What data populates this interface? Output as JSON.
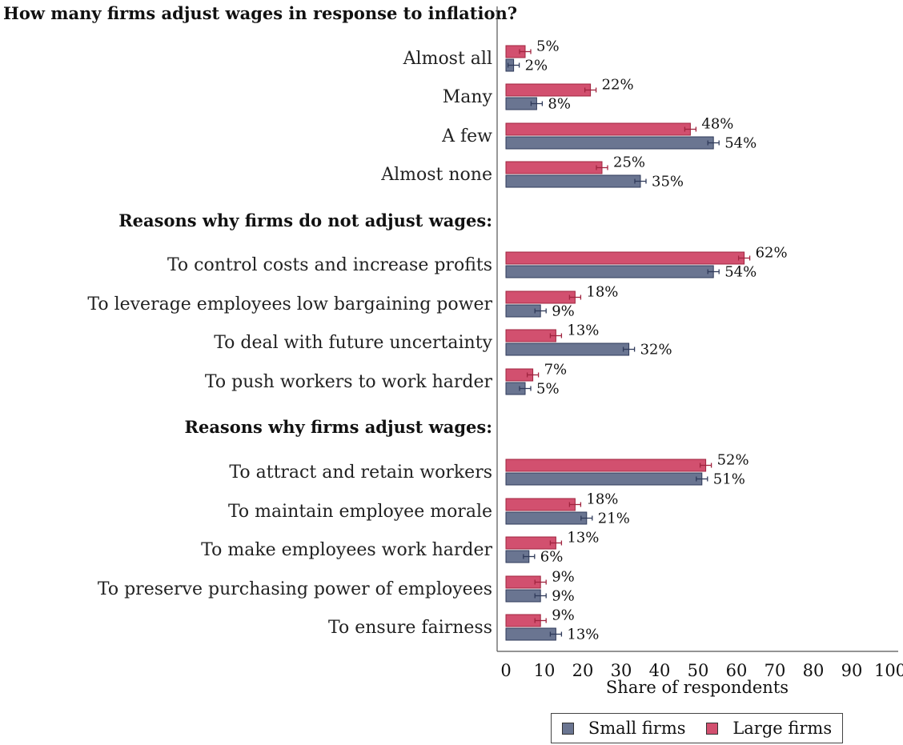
{
  "chart_data": {
    "type": "bar",
    "orientation": "horizontal",
    "title": "How many firms adjust wages in response to inflation?",
    "xlabel": "Share of respondents",
    "ylabel": "",
    "xlim": [
      0,
      100
    ],
    "xticks": [
      "0",
      "10",
      "20",
      "30",
      "40",
      "50",
      "60",
      "70",
      "80",
      "90",
      "100"
    ],
    "grid": false,
    "legend_position": "bottom",
    "colors": {
      "small": "#6a7591",
      "large": "#d2506f",
      "small_border": "#2f3a5a",
      "large_border": "#a0243f"
    },
    "series": [
      {
        "name": "Small firms",
        "key": "small"
      },
      {
        "name": "Large firms",
        "key": "large"
      }
    ],
    "groups": [
      {
        "heading": "",
        "categories": [
          {
            "label": "Almost all",
            "small": 2,
            "large": 5,
            "small_label": "2%",
            "large_label": "5%"
          },
          {
            "label": "Many",
            "small": 8,
            "large": 22,
            "small_label": "8%",
            "large_label": "22%"
          },
          {
            "label": "A few",
            "small": 54,
            "large": 48,
            "small_label": "54%",
            "large_label": "48%"
          },
          {
            "label": "Almost none",
            "small": 35,
            "large": 25,
            "small_label": "35%",
            "large_label": "25%"
          }
        ]
      },
      {
        "heading": "Reasons why firms do not adjust wages:",
        "categories": [
          {
            "label": "To control costs and increase profits",
            "small": 54,
            "large": 62,
            "small_label": "54%",
            "large_label": "62%"
          },
          {
            "label": "To leverage employees low bargaining power",
            "small": 9,
            "large": 18,
            "small_label": "9%",
            "large_label": "18%"
          },
          {
            "label": "To deal with future uncertainty",
            "small": 32,
            "large": 13,
            "small_label": "32%",
            "large_label": "13%"
          },
          {
            "label": "To push workers to work harder",
            "small": 5,
            "large": 7,
            "small_label": "5%",
            "large_label": "7%"
          }
        ]
      },
      {
        "heading": "Reasons why firms adjust wages:",
        "categories": [
          {
            "label": "To attract and retain workers",
            "small": 51,
            "large": 52,
            "small_label": "51%",
            "large_label": "52%"
          },
          {
            "label": "To maintain employee morale",
            "small": 21,
            "large": 18,
            "small_label": "21%",
            "large_label": "18%"
          },
          {
            "label": "To make employees work harder",
            "small": 6,
            "large": 13,
            "small_label": "6%",
            "large_label": "13%"
          },
          {
            "label": "To preserve purchasing power of employees",
            "small": 9,
            "large": 9,
            "small_label": "9%",
            "large_label": "9%"
          },
          {
            "label": "To ensure fairness",
            "small": 13,
            "large": 9,
            "small_label": "13%",
            "large_label": "9%"
          }
        ]
      }
    ]
  }
}
